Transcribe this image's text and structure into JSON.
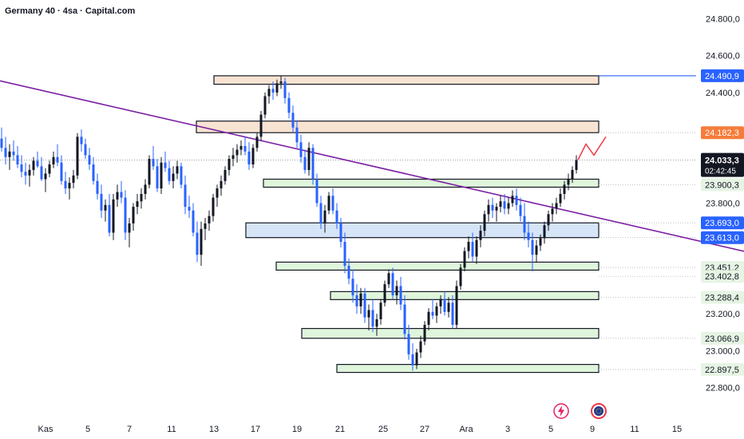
{
  "header": {
    "title": "Germany 40 · 4sa · Capital.com"
  },
  "icons": {
    "flash": "flash-icon",
    "globe": "globe-icon"
  },
  "colors": {
    "up_candle": "#131722",
    "down_candle": "#2962ff",
    "trendline": "#7b1fa2",
    "resistance_zone": "#f8e3d3",
    "support_zone": "#dff5dc",
    "pivot_zone": "#d6e4f7",
    "projection": "#f23645",
    "last_price_bg": "#131722",
    "level_label_bg": "#e6f4e4",
    "blue_label_bg": "#2962ff",
    "orange_label_bg": "#f57c3a"
  },
  "chart_data": {
    "type": "candlestick",
    "title": "Germany 40 · 4sa · Capital.com",
    "instrument": "Germany 40",
    "timeframe": "4sa",
    "source": "Capital.com",
    "y_range": [
      22750,
      24850
    ],
    "y_ticks": [
      "24.800,0",
      "24.600,0",
      "24.400,0",
      "23.800,0",
      "23.200,0",
      "23.000,0",
      "22.800,0"
    ],
    "y_tick_values": [
      24800,
      24600,
      24400,
      23800,
      23200,
      23000,
      22800
    ],
    "x_ticks": [
      "Kas",
      "5",
      "7",
      "11",
      "13",
      "17",
      "19",
      "21",
      "25",
      "27",
      "Ara",
      "3",
      "5",
      "9",
      "11",
      "15"
    ],
    "last_price": {
      "value": 24033.3,
      "label": "24.033,3",
      "countdown": "02:42:45"
    },
    "price_labels": [
      {
        "value": 24490.9,
        "label": "24.490,9",
        "style": "blue"
      },
      {
        "value": 24182.3,
        "label": "24.182,3",
        "style": "orange"
      },
      {
        "value": 23900.3,
        "label": "23.900,3",
        "style": "green"
      },
      {
        "value": 23693.0,
        "label": "23.693,0",
        "style": "blue"
      },
      {
        "value": 23613.0,
        "label": "23.613,0",
        "style": "blue"
      },
      {
        "value": 23451.2,
        "label": "23.451,2",
        "style": "green"
      },
      {
        "value": 23402.8,
        "label": "23.402,8",
        "style": "green"
      },
      {
        "value": 23288.4,
        "label": "23.288,4",
        "style": "green"
      },
      {
        "value": 23066.9,
        "label": "23.066,9",
        "style": "green"
      },
      {
        "value": 22897.5,
        "label": "22.897,5",
        "style": "green"
      }
    ],
    "zones": [
      {
        "type": "resistance",
        "top": 24490.9,
        "bottom": 24445
      },
      {
        "type": "resistance",
        "top": 24245,
        "bottom": 24182.3
      },
      {
        "type": "support",
        "top": 23930,
        "bottom": 23900.3
      },
      {
        "type": "pivot",
        "top": 23693.0,
        "bottom": 23613.0
      },
      {
        "type": "support",
        "top": 23480,
        "bottom": 23451.2
      },
      {
        "type": "support",
        "top": 23320,
        "bottom": 23288.4
      },
      {
        "type": "support",
        "top": 23120,
        "bottom": 23066.9
      },
      {
        "type": "support",
        "top": 22925,
        "bottom": 22897.5
      }
    ],
    "trendline": {
      "from": {
        "bar": 0,
        "price": 24420
      },
      "to": {
        "bar": 202,
        "price": 23430
      }
    },
    "projection": [
      [
        0,
        24035
      ],
      [
        2,
        24120
      ],
      [
        4,
        24060
      ],
      [
        7,
        24160
      ]
    ],
    "candles": [
      [
        24150,
        24210,
        24080,
        24100
      ],
      [
        24100,
        24160,
        24010,
        24050
      ],
      [
        24050,
        24120,
        23980,
        24080
      ],
      [
        24080,
        24140,
        24030,
        24060
      ],
      [
        24060,
        24110,
        23990,
        24010
      ],
      [
        24010,
        24060,
        23940,
        23970
      ],
      [
        23970,
        24020,
        23900,
        23950
      ],
      [
        23950,
        24010,
        23890,
        23980
      ],
      [
        23980,
        24050,
        23950,
        24030
      ],
      [
        24030,
        24080,
        23990,
        24000
      ],
      [
        24000,
        24050,
        23920,
        23930
      ],
      [
        23930,
        23990,
        23860,
        23960
      ],
      [
        23960,
        24030,
        23940,
        24010
      ],
      [
        24010,
        24080,
        23990,
        24050
      ],
      [
        24050,
        24120,
        24000,
        24020
      ],
      [
        24020,
        24060,
        23900,
        23920
      ],
      [
        23920,
        23970,
        23850,
        23880
      ],
      [
        23880,
        23940,
        23820,
        23910
      ],
      [
        23910,
        23980,
        23880,
        23950
      ],
      [
        23950,
        24180,
        23930,
        24160
      ],
      [
        24160,
        24200,
        24080,
        24120
      ],
      [
        24120,
        24150,
        24040,
        24060
      ],
      [
        24060,
        24100,
        23980,
        24010
      ],
      [
        24010,
        24050,
        23900,
        23920
      ],
      [
        23920,
        23960,
        23820,
        23850
      ],
      [
        23850,
        23900,
        23720,
        23760
      ],
      [
        23760,
        23820,
        23700,
        23790
      ],
      [
        23790,
        23850,
        23620,
        23640
      ],
      [
        23640,
        23850,
        23600,
        23820
      ],
      [
        23820,
        23900,
        23780,
        23860
      ],
      [
        23860,
        23920,
        23800,
        23830
      ],
      [
        23830,
        23870,
        23600,
        23640
      ],
      [
        23640,
        23720,
        23560,
        23690
      ],
      [
        23690,
        23800,
        23650,
        23780
      ],
      [
        23780,
        23850,
        23740,
        23810
      ],
      [
        23810,
        23880,
        23770,
        23850
      ],
      [
        23850,
        23930,
        23820,
        23900
      ],
      [
        23900,
        24060,
        23880,
        24040
      ],
      [
        24040,
        24110,
        23980,
        24000
      ],
      [
        24000,
        24040,
        23860,
        23880
      ],
      [
        23880,
        24050,
        23850,
        24020
      ],
      [
        24020,
        24080,
        23970,
        23990
      ],
      [
        23990,
        24030,
        23900,
        23920
      ],
      [
        23920,
        24000,
        23880,
        23960
      ],
      [
        23960,
        24030,
        23930,
        24000
      ],
      [
        24000,
        24020,
        23880,
        23900
      ],
      [
        23900,
        23950,
        23740,
        23780
      ],
      [
        23780,
        23840,
        23720,
        23760
      ],
      [
        23760,
        23800,
        23620,
        23640
      ],
      [
        23640,
        23700,
        23480,
        23520
      ],
      [
        23520,
        23700,
        23460,
        23660
      ],
      [
        23660,
        23720,
        23600,
        23690
      ],
      [
        23690,
        23760,
        23650,
        23730
      ],
      [
        23730,
        23850,
        23700,
        23830
      ],
      [
        23830,
        23900,
        23780,
        23880
      ],
      [
        23880,
        23950,
        23840,
        23920
      ],
      [
        23920,
        24000,
        23900,
        23980
      ],
      [
        23980,
        24060,
        23950,
        24040
      ],
      [
        24040,
        24100,
        24000,
        24060
      ],
      [
        24060,
        24120,
        24020,
        24090
      ],
      [
        24090,
        24140,
        24060,
        24110
      ],
      [
        24110,
        24160,
        24060,
        24080
      ],
      [
        24080,
        24130,
        23980,
        24010
      ],
      [
        24010,
        24120,
        23990,
        24100
      ],
      [
        24100,
        24180,
        24080,
        24160
      ],
      [
        24160,
        24300,
        24140,
        24280
      ],
      [
        24280,
        24400,
        24260,
        24380
      ],
      [
        24380,
        24440,
        24340,
        24420
      ],
      [
        24420,
        24460,
        24360,
        24400
      ],
      [
        24400,
        24470,
        24380,
        24450
      ],
      [
        24450,
        24490,
        24420,
        24460
      ],
      [
        24460,
        24480,
        24340,
        24370
      ],
      [
        24370,
        24400,
        24260,
        24290
      ],
      [
        24290,
        24330,
        24180,
        24210
      ],
      [
        24210,
        24250,
        24100,
        24130
      ],
      [
        24130,
        24170,
        24020,
        24050
      ],
      [
        24050,
        24090,
        23960,
        23980
      ],
      [
        23980,
        24130,
        23950,
        24100
      ],
      [
        24100,
        24120,
        23900,
        23930
      ],
      [
        23930,
        23960,
        23780,
        23800
      ],
      [
        23800,
        23840,
        23660,
        23690
      ],
      [
        23690,
        23790,
        23640,
        23760
      ],
      [
        23760,
        23860,
        23740,
        23840
      ],
      [
        23840,
        23880,
        23740,
        23760
      ],
      [
        23760,
        23800,
        23660,
        23690
      ],
      [
        23690,
        23720,
        23560,
        23590
      ],
      [
        23590,
        23640,
        23420,
        23460
      ],
      [
        23460,
        23500,
        23360,
        23390
      ],
      [
        23390,
        23440,
        23260,
        23300
      ],
      [
        23300,
        23360,
        23200,
        23240
      ],
      [
        23240,
        23340,
        23200,
        23310
      ],
      [
        23310,
        23340,
        23150,
        23180
      ],
      [
        23180,
        23250,
        23110,
        23220
      ],
      [
        23220,
        23280,
        23100,
        23130
      ],
      [
        23130,
        23200,
        23080,
        23170
      ],
      [
        23170,
        23280,
        23140,
        23260
      ],
      [
        23260,
        23380,
        23240,
        23360
      ],
      [
        23360,
        23440,
        23340,
        23420
      ],
      [
        23420,
        23450,
        23280,
        23300
      ],
      [
        23300,
        23380,
        23250,
        23350
      ],
      [
        23350,
        23400,
        23220,
        23250
      ],
      [
        23250,
        23300,
        23060,
        23090
      ],
      [
        23090,
        23140,
        22950,
        22980
      ],
      [
        22980,
        23040,
        22890,
        22920
      ],
      [
        22920,
        23010,
        22900,
        22990
      ],
      [
        22990,
        23080,
        22960,
        23050
      ],
      [
        23050,
        23160,
        23030,
        23140
      ],
      [
        23140,
        23230,
        23110,
        23210
      ],
      [
        23210,
        23280,
        23170,
        23190
      ],
      [
        23190,
        23260,
        23150,
        23240
      ],
      [
        23240,
        23300,
        23200,
        23280
      ],
      [
        23280,
        23320,
        23190,
        23210
      ],
      [
        23210,
        23290,
        23180,
        23260
      ],
      [
        23260,
        23300,
        23120,
        23140
      ],
      [
        23140,
        23380,
        23120,
        23350
      ],
      [
        23350,
        23470,
        23330,
        23450
      ],
      [
        23450,
        23560,
        23430,
        23540
      ],
      [
        23540,
        23620,
        23500,
        23590
      ],
      [
        23590,
        23640,
        23480,
        23510
      ],
      [
        23510,
        23620,
        23470,
        23600
      ],
      [
        23600,
        23680,
        23560,
        23650
      ],
      [
        23650,
        23760,
        23620,
        23740
      ],
      [
        23740,
        23820,
        23700,
        23790
      ],
      [
        23790,
        23830,
        23720,
        23760
      ],
      [
        23760,
        23800,
        23700,
        23780
      ],
      [
        23780,
        23840,
        23750,
        23810
      ],
      [
        23810,
        23850,
        23740,
        23770
      ],
      [
        23770,
        23830,
        23740,
        23800
      ],
      [
        23800,
        23870,
        23780,
        23840
      ],
      [
        23840,
        23880,
        23760,
        23790
      ],
      [
        23790,
        23830,
        23700,
        23730
      ],
      [
        23730,
        23800,
        23600,
        23640
      ],
      [
        23640,
        23700,
        23560,
        23600
      ],
      [
        23600,
        23640,
        23430,
        23520
      ],
      [
        23520,
        23600,
        23480,
        23570
      ],
      [
        23570,
        23630,
        23540,
        23610
      ],
      [
        23610,
        23700,
        23580,
        23680
      ],
      [
        23680,
        23760,
        23650,
        23740
      ],
      [
        23740,
        23800,
        23700,
        23770
      ],
      [
        23770,
        23830,
        23740,
        23800
      ],
      [
        23800,
        23880,
        23780,
        23850
      ],
      [
        23850,
        23920,
        23820,
        23900
      ],
      [
        23900,
        23960,
        23870,
        23930
      ],
      [
        23930,
        24000,
        23910,
        23980
      ],
      [
        23980,
        24060,
        23960,
        24033.3
      ]
    ]
  }
}
